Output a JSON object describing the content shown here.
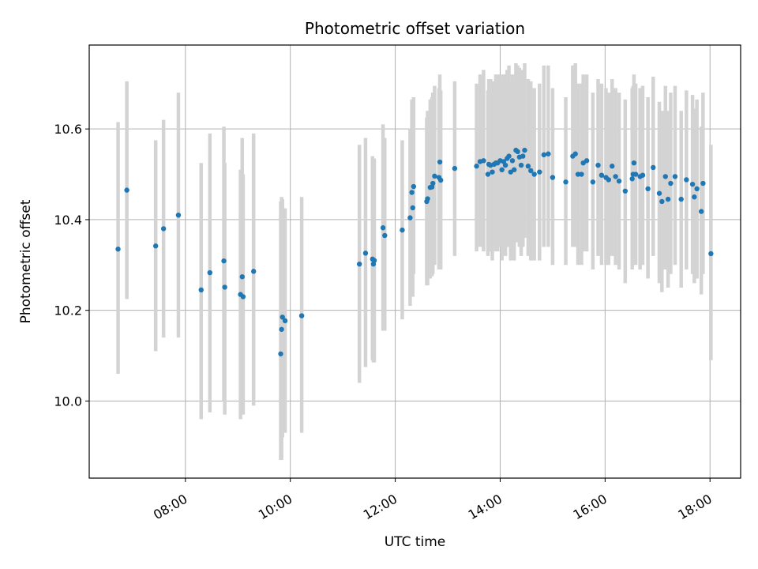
{
  "chart_data": {
    "type": "scatter",
    "title": "Photometric offset variation",
    "xlabel": "UTC time",
    "ylabel": "Photometric offset",
    "x_is_time": true,
    "xlim": [
      "06:10",
      "18:35"
    ],
    "ylim": [
      9.83,
      10.785
    ],
    "xticks": [
      "08:00",
      "10:00",
      "12:00",
      "14:00",
      "16:00",
      "18:00"
    ],
    "yticks": [
      10.0,
      10.2,
      10.4,
      10.6
    ],
    "ytick_labels": [
      "10.0",
      "10.2",
      "10.4",
      "10.6"
    ],
    "grid": true,
    "legend": "none",
    "colors": {
      "points": "#1f77b4",
      "errorbars": "#d3d3d3",
      "grid": "#b0b0b0"
    },
    "series": [
      {
        "x": [
          "06:43",
          "06:53",
          "07:26",
          "07:35",
          "07:52",
          "08:18",
          "08:28",
          "08:44",
          "08:45",
          "09:03",
          "09:05",
          "09:06",
          "09:18",
          "09:49",
          "09:50",
          "09:51",
          "09:54",
          "10:13",
          "11:19",
          "11:26",
          "11:34",
          "11:35",
          "11:36",
          "11:46",
          "11:48",
          "12:08",
          "12:17",
          "12:19",
          "12:20",
          "12:21",
          "12:36",
          "12:37",
          "12:40",
          "12:42",
          "12:43",
          "12:45",
          "12:50",
          "12:51",
          "12:52",
          "13:08",
          "13:33",
          "13:37",
          "13:41",
          "13:46",
          "13:47",
          "13:49",
          "13:51",
          "13:53",
          "13:55",
          "13:57",
          "14:00",
          "14:02",
          "14:04",
          "14:06",
          "14:08",
          "14:10",
          "14:12",
          "14:14",
          "14:16",
          "14:18",
          "14:20",
          "14:22",
          "14:24",
          "14:26",
          "14:28",
          "14:32",
          "14:35",
          "14:39",
          "14:45",
          "14:50",
          "14:55",
          "15:00",
          "15:15",
          "15:23",
          "15:26",
          "15:29",
          "15:33",
          "15:35",
          "15:39",
          "15:46",
          "15:52",
          "15:56",
          "16:01",
          "16:04",
          "16:08",
          "16:12",
          "16:16",
          "16:23",
          "16:31",
          "16:32",
          "16:33",
          "16:35",
          "16:40",
          "16:43",
          "16:49",
          "16:55",
          "17:02",
          "17:05",
          "17:09",
          "17:12",
          "17:15",
          "17:20",
          "17:27",
          "17:33",
          "17:40",
          "17:42",
          "17:45",
          "17:50",
          "17:52",
          "18:01"
        ],
        "y": [
          10.335,
          10.465,
          10.342,
          10.38,
          10.41,
          10.245,
          10.283,
          10.309,
          10.251,
          10.235,
          10.274,
          10.23,
          10.286,
          10.104,
          10.158,
          10.185,
          10.177,
          10.188,
          10.302,
          10.326,
          10.313,
          10.302,
          10.31,
          10.382,
          10.365,
          10.377,
          10.404,
          10.46,
          10.426,
          10.473,
          10.44,
          10.446,
          10.471,
          10.472,
          10.48,
          10.496,
          10.493,
          10.527,
          10.487,
          10.513,
          10.518,
          10.528,
          10.53,
          10.5,
          10.522,
          10.52,
          10.505,
          10.522,
          10.525,
          10.525,
          10.53,
          10.51,
          10.528,
          10.52,
          10.535,
          10.54,
          10.505,
          10.53,
          10.51,
          10.553,
          10.55,
          10.538,
          10.52,
          10.54,
          10.553,
          10.518,
          10.508,
          10.5,
          10.505,
          10.543,
          10.545,
          10.493,
          10.483,
          10.54,
          10.545,
          10.5,
          10.5,
          10.525,
          10.53,
          10.483,
          10.52,
          10.498,
          10.493,
          10.488,
          10.518,
          10.495,
          10.485,
          10.463,
          10.49,
          10.5,
          10.525,
          10.5,
          10.495,
          10.498,
          10.468,
          10.515,
          10.458,
          10.44,
          10.495,
          10.445,
          10.48,
          10.495,
          10.445,
          10.488,
          10.478,
          10.45,
          10.468,
          10.418,
          10.48,
          10.325
        ],
        "yerr_low": [
          10.06,
          10.225,
          10.11,
          10.14,
          10.14,
          9.96,
          9.975,
          10.0,
          9.97,
          9.96,
          9.975,
          9.97,
          9.99,
          9.87,
          9.87,
          9.92,
          9.93,
          9.93,
          10.04,
          10.075,
          10.09,
          10.085,
          10.085,
          10.155,
          10.155,
          10.18,
          10.21,
          10.26,
          10.23,
          10.28,
          10.255,
          10.255,
          10.27,
          10.275,
          10.28,
          10.3,
          10.29,
          10.325,
          10.29,
          10.32,
          10.33,
          10.34,
          10.33,
          10.32,
          10.34,
          10.33,
          10.31,
          10.34,
          10.33,
          10.33,
          10.34,
          10.31,
          10.33,
          10.32,
          10.34,
          10.34,
          10.31,
          10.33,
          10.31,
          10.36,
          10.35,
          10.34,
          10.32,
          10.34,
          10.36,
          10.32,
          10.31,
          10.31,
          10.31,
          10.34,
          10.34,
          10.3,
          10.3,
          10.34,
          10.34,
          10.3,
          10.3,
          10.33,
          10.33,
          10.29,
          10.32,
          10.3,
          10.3,
          10.3,
          10.32,
          10.3,
          10.29,
          10.26,
          10.29,
          10.3,
          10.33,
          10.3,
          10.29,
          10.3,
          10.27,
          10.32,
          10.26,
          10.24,
          10.29,
          10.25,
          10.28,
          10.3,
          10.25,
          10.29,
          10.28,
          10.26,
          10.27,
          10.235,
          10.28,
          10.09
        ],
        "yerr_high": [
          10.615,
          10.705,
          10.575,
          10.62,
          10.68,
          10.525,
          10.59,
          10.605,
          10.525,
          10.51,
          10.58,
          10.5,
          10.59,
          10.44,
          10.45,
          10.445,
          10.425,
          10.45,
          10.565,
          10.58,
          10.54,
          10.52,
          10.535,
          10.61,
          10.58,
          10.575,
          10.6,
          10.665,
          10.625,
          10.67,
          10.625,
          10.64,
          10.665,
          10.67,
          10.68,
          10.695,
          10.69,
          10.72,
          10.685,
          10.705,
          10.7,
          10.72,
          10.73,
          10.685,
          10.71,
          10.71,
          10.7,
          10.705,
          10.72,
          10.72,
          10.72,
          10.71,
          10.72,
          10.72,
          10.73,
          10.74,
          10.7,
          10.72,
          10.71,
          10.745,
          10.74,
          10.735,
          10.72,
          10.73,
          10.745,
          10.71,
          10.705,
          10.69,
          10.7,
          10.74,
          10.74,
          10.69,
          10.67,
          10.74,
          10.745,
          10.7,
          10.7,
          10.72,
          10.72,
          10.68,
          10.71,
          10.7,
          10.69,
          10.68,
          10.71,
          10.69,
          10.68,
          10.665,
          10.69,
          10.695,
          10.72,
          10.7,
          10.69,
          10.695,
          10.67,
          10.715,
          10.66,
          10.64,
          10.695,
          10.64,
          10.68,
          10.695,
          10.64,
          10.685,
          10.675,
          10.645,
          10.665,
          10.605,
          10.68,
          10.565
        ]
      }
    ]
  }
}
